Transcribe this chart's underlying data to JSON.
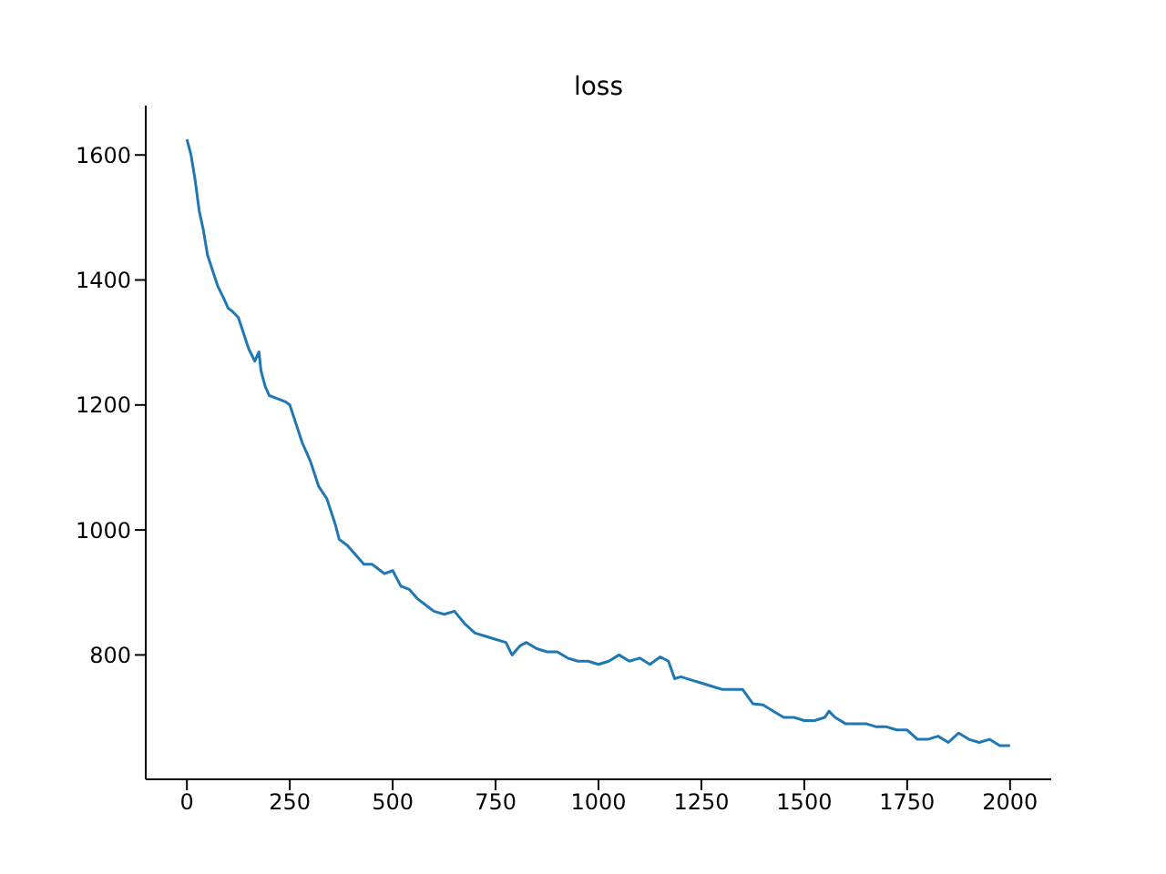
{
  "chart_data": {
    "type": "line",
    "title": "loss",
    "x": [
      0,
      10,
      20,
      30,
      40,
      50,
      60,
      75,
      90,
      100,
      110,
      125,
      140,
      150,
      165,
      175,
      180,
      190,
      200,
      220,
      240,
      250,
      260,
      280,
      300,
      320,
      340,
      360,
      370,
      390,
      410,
      430,
      450,
      460,
      480,
      500,
      520,
      540,
      560,
      580,
      600,
      625,
      650,
      675,
      700,
      725,
      750,
      775,
      790,
      810,
      825,
      850,
      875,
      900,
      925,
      950,
      975,
      1000,
      1025,
      1050,
      1075,
      1100,
      1125,
      1150,
      1170,
      1185,
      1200,
      1225,
      1250,
      1275,
      1300,
      1325,
      1350,
      1375,
      1400,
      1425,
      1450,
      1475,
      1500,
      1525,
      1550,
      1560,
      1575,
      1600,
      1625,
      1650,
      1675,
      1700,
      1725,
      1750,
      1775,
      1800,
      1825,
      1850,
      1875,
      1900,
      1925,
      1950,
      1975,
      2000
    ],
    "series": [
      {
        "color": "#1f77b4",
        "values": [
          1625,
          1600,
          1560,
          1510,
          1480,
          1440,
          1420,
          1390,
          1370,
          1355,
          1350,
          1340,
          1310,
          1290,
          1270,
          1285,
          1255,
          1230,
          1215,
          1210,
          1205,
          1200,
          1180,
          1140,
          1110,
          1070,
          1050,
          1010,
          985,
          975,
          960,
          945,
          945,
          940,
          930,
          935,
          910,
          905,
          890,
          880,
          870,
          865,
          870,
          850,
          835,
          830,
          825,
          820,
          800,
          815,
          820,
          810,
          805,
          805,
          795,
          790,
          790,
          785,
          790,
          800,
          790,
          795,
          785,
          797,
          790,
          762,
          765,
          760,
          755,
          750,
          745,
          745,
          745,
          722,
          720,
          710,
          700,
          700,
          695,
          695,
          700,
          710,
          700,
          690,
          690,
          690,
          685,
          685,
          680,
          680,
          665,
          665,
          670,
          660,
          675,
          665,
          660,
          665,
          655,
          655
        ]
      }
    ],
    "xlim": [
      -100,
      2100
    ],
    "xticks": [
      0,
      250,
      500,
      750,
      1000,
      1250,
      1500,
      1750,
      2000
    ],
    "ylim": [
      601,
      1679
    ],
    "yticks": [
      800,
      1000,
      1200,
      1400,
      1600
    ]
  }
}
